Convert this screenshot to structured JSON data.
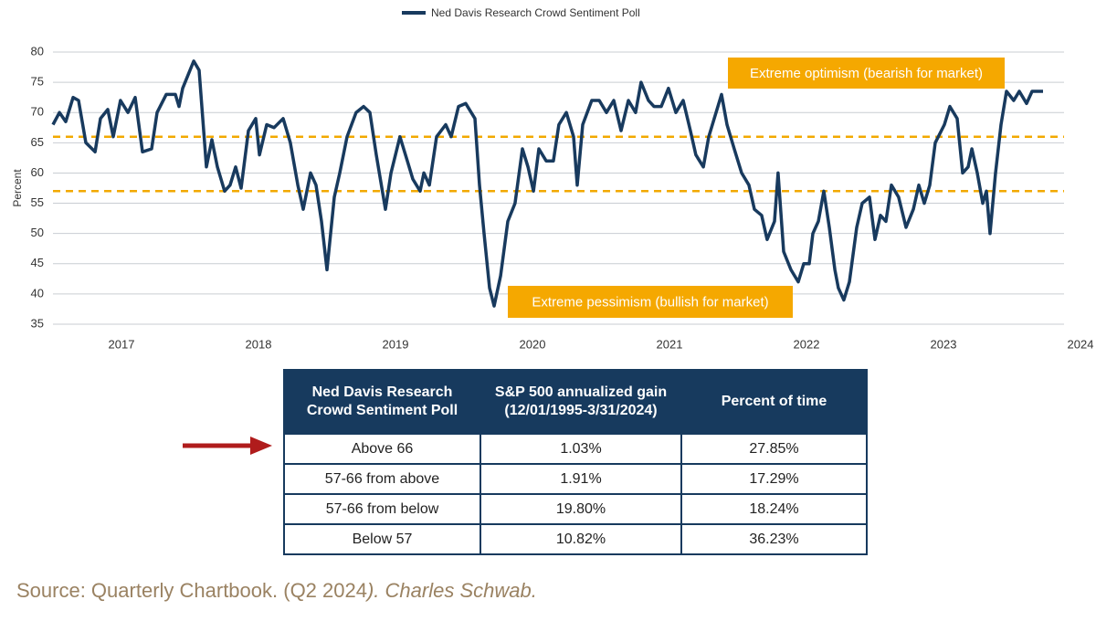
{
  "chart_data": {
    "type": "line",
    "x": [
      2016.5,
      2016.547,
      2016.593,
      2016.647,
      2016.687,
      2016.74,
      2016.807,
      2016.847,
      2016.9,
      2016.94,
      2016.993,
      2017.047,
      2017.1,
      2017.153,
      2017.22,
      2017.26,
      2017.327,
      2017.393,
      2017.42,
      2017.447,
      2017.527,
      2017.567,
      2017.62,
      2017.66,
      2017.7,
      2017.753,
      2017.793,
      2017.833,
      2017.873,
      2017.927,
      2017.98,
      2018.007,
      2018.06,
      2018.113,
      2018.18,
      2018.233,
      2018.287,
      2018.327,
      2018.38,
      2018.42,
      2018.46,
      2018.5,
      2018.553,
      2018.593,
      2018.647,
      2018.713,
      2018.767,
      2018.813,
      2018.86,
      2018.927,
      2018.967,
      2019.033,
      2019.087,
      2019.127,
      2019.18,
      2019.207,
      2019.247,
      2019.3,
      2019.367,
      2019.407,
      2019.46,
      2019.513,
      2019.58,
      2019.613,
      2019.647,
      2019.687,
      2019.72,
      2019.767,
      2019.82,
      2019.873,
      2019.927,
      2019.967,
      2020.007,
      2020.047,
      2020.1,
      2020.153,
      2020.193,
      2020.247,
      2020.3,
      2020.327,
      2020.367,
      2020.433,
      2020.487,
      2020.54,
      2020.593,
      2020.647,
      2020.7,
      2020.753,
      2020.793,
      2020.847,
      2020.887,
      2020.94,
      2020.993,
      2021.047,
      2021.1,
      2021.153,
      2021.193,
      2021.247,
      2021.287,
      2021.34,
      2021.38,
      2021.42,
      2021.473,
      2021.527,
      2021.58,
      2021.62,
      2021.673,
      2021.713,
      2021.767,
      2021.793,
      2021.833,
      2021.887,
      2021.94,
      2021.98,
      2022.02,
      2022.047,
      2022.087,
      2022.127,
      2022.167,
      2022.207,
      2022.233,
      2022.273,
      2022.313,
      2022.367,
      2022.407,
      2022.46,
      2022.5,
      2022.54,
      2022.58,
      2022.62,
      2022.673,
      2022.727,
      2022.78,
      2022.82,
      2022.86,
      2022.9,
      2022.94,
      2023.007,
      2023.047,
      2023.1,
      2023.14,
      2023.18,
      2023.207,
      2023.247,
      2023.287,
      2023.313,
      2023.34,
      2023.38,
      2023.42,
      2023.46,
      2023.513,
      2023.553,
      2023.607,
      2023.647,
      2023.727
    ],
    "series": [
      {
        "name": "Ned Davis Research Crowd Sentiment Poll",
        "color": "#183a5e",
        "values": [
          68,
          70,
          68.5,
          72.5,
          72,
          65,
          63.5,
          69,
          70.5,
          66,
          72,
          70,
          72.5,
          63.5,
          64,
          70,
          73,
          73,
          71,
          74,
          78.5,
          77,
          61,
          65.5,
          61,
          57,
          58,
          61,
          57.5,
          67,
          69,
          63,
          68,
          67.5,
          69,
          65,
          58,
          54,
          60,
          58,
          52,
          44,
          56,
          60,
          66,
          70,
          71,
          70,
          63,
          54,
          60,
          66,
          62,
          59,
          57,
          60,
          58,
          66,
          68,
          66,
          71,
          71.5,
          69,
          58,
          50,
          41,
          38,
          43,
          52,
          55,
          64,
          61,
          57,
          64,
          62,
          62,
          68,
          70,
          66,
          58,
          68,
          72,
          72,
          70,
          72,
          67,
          72,
          70,
          75,
          72,
          71,
          71,
          74,
          70,
          72,
          67,
          63,
          61,
          66,
          70,
          73,
          68,
          64,
          60,
          58,
          54,
          53,
          49,
          52,
          60,
          47,
          44,
          42,
          45,
          45,
          50,
          52,
          57,
          51,
          44,
          41,
          39,
          42,
          51,
          55,
          56,
          49,
          53,
          52,
          58,
          56,
          51,
          54,
          58,
          55,
          58,
          65,
          68,
          71,
          69,
          60,
          61,
          64,
          60,
          55,
          57,
          50,
          60,
          68,
          73.5,
          72,
          73.5,
          71.5,
          73.5,
          73.5
        ]
      }
    ],
    "y_label": "Percent",
    "xlim": [
      2016.5,
      2023.88
    ],
    "xticks": [
      2017,
      2018,
      2019,
      2020,
      2021,
      2022,
      2023,
      2024
    ],
    "ylim": [
      35,
      80
    ],
    "yticks": [
      35,
      40,
      45,
      50,
      55,
      60,
      65,
      70,
      75,
      80
    ],
    "grid": true,
    "legend": "top",
    "reference_lines": {
      "values": [
        66,
        57
      ],
      "color": "#f2a900"
    },
    "annotations": [
      "Extreme optimism (bearish for market)",
      "Extreme pessimism (bullish for market)"
    ],
    "annotation_color": "#f5a800"
  },
  "table": {
    "header": [
      "Ned Davis Research\nCrowd Sentiment Poll",
      "S&P 500 annualized gain\n(12/01/1995-3/31/2024)",
      "Percent of time"
    ],
    "rows": [
      [
        "Above 66",
        "1.03%",
        "27.85%"
      ],
      [
        "57-66 from above",
        "1.91%",
        "17.29%"
      ],
      [
        "57-66 from below",
        "19.80%",
        "18.24%"
      ],
      [
        "Below 57",
        "10.82%",
        "36.23%"
      ]
    ]
  },
  "source": [
    "Source: Quarterly Chartbook. (Q2 2024",
    "). Charles Schwab."
  ]
}
